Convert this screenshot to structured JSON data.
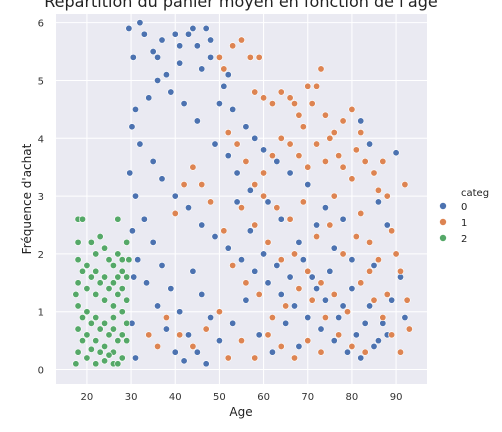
{
  "chart_data": {
    "type": "scatter",
    "title": "Répartition du panier moyen en fonction de l'âge",
    "xlabel": "Age",
    "ylabel": "Fréquence d'achat",
    "xlim": [
      13,
      97
    ],
    "ylim": [
      -0.25,
      6.15
    ],
    "xticks": [
      20,
      30,
      40,
      50,
      60,
      70,
      80,
      90
    ],
    "yticks": [
      0,
      1,
      2,
      3,
      4,
      5,
      6
    ],
    "grid": true,
    "background": "#eaeaf2",
    "legend": {
      "title": "categ",
      "placement": "right",
      "entries": [
        {
          "label": "0",
          "color": "#4c72b0"
        },
        {
          "label": "1",
          "color": "#dd8452"
        },
        {
          "label": "2",
          "color": "#55a868"
        }
      ]
    },
    "series": [
      {
        "name": "0",
        "color": "#4c72b0",
        "points": [
          [
            29.5,
            5.9
          ],
          [
            30.5,
            5.4
          ],
          [
            32,
            6.0
          ],
          [
            33,
            5.8
          ],
          [
            35,
            5.5
          ],
          [
            36,
            5.4
          ],
          [
            38,
            5.1
          ],
          [
            40,
            5.8
          ],
          [
            41,
            5.6
          ],
          [
            43,
            5.8
          ],
          [
            44,
            5.9
          ],
          [
            46,
            5.2
          ],
          [
            47,
            5.9
          ],
          [
            48,
            5.4
          ],
          [
            51,
            4.9
          ],
          [
            53,
            4.5
          ],
          [
            56,
            4.2
          ],
          [
            58,
            4.0
          ],
          [
            60,
            3.8
          ],
          [
            63,
            3.6
          ],
          [
            66,
            3.4
          ],
          [
            70,
            3.2
          ],
          [
            74,
            2.8
          ],
          [
            78,
            2.6
          ],
          [
            82,
            4.3
          ],
          [
            84,
            3.9
          ],
          [
            86,
            2.9
          ],
          [
            88,
            2.5
          ],
          [
            90,
            3.75
          ],
          [
            91,
            1.6
          ],
          [
            92,
            0.9
          ],
          [
            89,
            1.2
          ],
          [
            85,
            1.8
          ],
          [
            80,
            1.9
          ],
          [
            76,
            2.1
          ],
          [
            72,
            2.5
          ],
          [
            68,
            2.2
          ],
          [
            64,
            2.6
          ],
          [
            61,
            2.9
          ],
          [
            57,
            3.1
          ],
          [
            54,
            3.4
          ],
          [
            52,
            3.7
          ],
          [
            49,
            3.9
          ],
          [
            45,
            4.3
          ],
          [
            42,
            4.6
          ],
          [
            39,
            4.8
          ],
          [
            36,
            5.0
          ],
          [
            34,
            4.7
          ],
          [
            31,
            4.5
          ],
          [
            30.2,
            4.2
          ],
          [
            32,
            3.9
          ],
          [
            35,
            3.6
          ],
          [
            37,
            3.3
          ],
          [
            40,
            3.0
          ],
          [
            43,
            2.8
          ],
          [
            46,
            2.5
          ],
          [
            49,
            2.3
          ],
          [
            52,
            2.1
          ],
          [
            55,
            1.9
          ],
          [
            58,
            1.7
          ],
          [
            61,
            1.5
          ],
          [
            64,
            1.3
          ],
          [
            67,
            1.1
          ],
          [
            70,
            0.9
          ],
          [
            73,
            0.7
          ],
          [
            76,
            0.5
          ],
          [
            79,
            0.3
          ],
          [
            82,
            0.2
          ],
          [
            85,
            0.4
          ],
          [
            88,
            0.6
          ],
          [
            31,
            3.0
          ],
          [
            33,
            2.6
          ],
          [
            35,
            2.2
          ],
          [
            37,
            1.8
          ],
          [
            39,
            1.4
          ],
          [
            41,
            1.0
          ],
          [
            43,
            0.6
          ],
          [
            45,
            0.3
          ],
          [
            47,
            0.1
          ],
          [
            31.5,
            1.9
          ],
          [
            33.5,
            1.5
          ],
          [
            36,
            1.1
          ],
          [
            38,
            0.7
          ],
          [
            40,
            0.3
          ],
          [
            42,
            0.15
          ],
          [
            44,
            1.7
          ],
          [
            46,
            1.3
          ],
          [
            48,
            0.9
          ],
          [
            50,
            0.5
          ],
          [
            53,
            0.8
          ],
          [
            56,
            1.2
          ],
          [
            59,
            0.6
          ],
          [
            62,
            0.3
          ],
          [
            65,
            0.8
          ],
          [
            68,
            0.4
          ],
          [
            71,
            1.6
          ],
          [
            74,
            1.2
          ],
          [
            77,
            0.9
          ],
          [
            80,
            1.4
          ],
          [
            83,
            0.8
          ],
          [
            86,
            0.5
          ],
          [
            30.3,
            2.4
          ],
          [
            30.6,
            1.6
          ],
          [
            30.2,
            0.8
          ],
          [
            31,
            0.2
          ],
          [
            29.7,
            3.4
          ],
          [
            50,
            4.6
          ],
          [
            52,
            5.1
          ],
          [
            48,
            5.7
          ],
          [
            45,
            5.6
          ],
          [
            41,
            5.3
          ],
          [
            37,
            5.7
          ],
          [
            54,
            2.9
          ],
          [
            57,
            2.4
          ],
          [
            60,
            2.0
          ],
          [
            63,
            1.8
          ],
          [
            66,
            1.6
          ],
          [
            69,
            1.9
          ],
          [
            72,
            1.4
          ],
          [
            75,
            1.7
          ],
          [
            78,
            1.1
          ],
          [
            81,
            0.6
          ],
          [
            84,
            1.1
          ],
          [
            87,
            0.8
          ]
        ]
      },
      {
        "name": "1",
        "color": "#dd8452",
        "points": [
          [
            50,
            5.4
          ],
          [
            51,
            5.2
          ],
          [
            53,
            5.6
          ],
          [
            55,
            5.7
          ],
          [
            57,
            5.4
          ],
          [
            59,
            5.4
          ],
          [
            58,
            4.8
          ],
          [
            60,
            4.7
          ],
          [
            62,
            4.6
          ],
          [
            64,
            4.8
          ],
          [
            66,
            4.7
          ],
          [
            67,
            4.6
          ],
          [
            68,
            4.4
          ],
          [
            70,
            4.9
          ],
          [
            71,
            4.6
          ],
          [
            72,
            4.9
          ],
          [
            73,
            5.2
          ],
          [
            74,
            4.4
          ],
          [
            76,
            4.1
          ],
          [
            78,
            4.3
          ],
          [
            80,
            4.5
          ],
          [
            81,
            3.8
          ],
          [
            82,
            4.1
          ],
          [
            83,
            3.6
          ],
          [
            85,
            3.4
          ],
          [
            86,
            3.1
          ],
          [
            87,
            3.6
          ],
          [
            88,
            3.0
          ],
          [
            89,
            2.4
          ],
          [
            90,
            2.0
          ],
          [
            91,
            1.7
          ],
          [
            92,
            3.2
          ],
          [
            92.5,
            1.2
          ],
          [
            93,
            0.7
          ],
          [
            91,
            0.3
          ],
          [
            88,
            1.3
          ],
          [
            86,
            1.9
          ],
          [
            84,
            2.2
          ],
          [
            82,
            2.7
          ],
          [
            80,
            3.3
          ],
          [
            78,
            3.5
          ],
          [
            76,
            3.0
          ],
          [
            74,
            3.6
          ],
          [
            72,
            3.9
          ],
          [
            70,
            3.5
          ],
          [
            68,
            3.7
          ],
          [
            66,
            3.9
          ],
          [
            64,
            4.0
          ],
          [
            62,
            3.7
          ],
          [
            60,
            3.4
          ],
          [
            58,
            3.2
          ],
          [
            56,
            3.6
          ],
          [
            54,
            3.9
          ],
          [
            52,
            4.1
          ],
          [
            55,
            2.8
          ],
          [
            58,
            2.5
          ],
          [
            61,
            2.2
          ],
          [
            64,
            1.9
          ],
          [
            67,
            2.0
          ],
          [
            70,
            1.7
          ],
          [
            73,
            1.5
          ],
          [
            76,
            1.3
          ],
          [
            79,
            1.0
          ],
          [
            82,
            1.5
          ],
          [
            85,
            1.2
          ],
          [
            87,
            0.9
          ],
          [
            89,
            0.6
          ],
          [
            83,
            0.3
          ],
          [
            80,
            0.4
          ],
          [
            77,
            0.6
          ],
          [
            74,
            0.9
          ],
          [
            71,
            1.2
          ],
          [
            68,
            1.4
          ],
          [
            65,
            1.1
          ],
          [
            62,
            0.9
          ],
          [
            59,
            1.3
          ],
          [
            56,
            1.5
          ],
          [
            53,
            1.8
          ],
          [
            51,
            2.4
          ],
          [
            48,
            2.9
          ],
          [
            46,
            3.2
          ],
          [
            44,
            3.5
          ],
          [
            42,
            3.2
          ],
          [
            40,
            2.7
          ],
          [
            50,
            1.0
          ],
          [
            47,
            0.7
          ],
          [
            44,
            0.4
          ],
          [
            41,
            0.6
          ],
          [
            38,
            0.9
          ],
          [
            36,
            0.4
          ],
          [
            34,
            0.6
          ],
          [
            52,
            0.2
          ],
          [
            55,
            0.5
          ],
          [
            58,
            0.2
          ],
          [
            61,
            0.6
          ],
          [
            64,
            0.4
          ],
          [
            67,
            0.2
          ],
          [
            70,
            0.5
          ],
          [
            73,
            0.3
          ],
          [
            60,
            3.0
          ],
          [
            63,
            2.8
          ],
          [
            66,
            2.6
          ],
          [
            69,
            2.9
          ],
          [
            72,
            2.3
          ],
          [
            75,
            2.5
          ],
          [
            78,
            2.0
          ],
          [
            81,
            2.3
          ],
          [
            84,
            1.7
          ],
          [
            77,
            3.7
          ],
          [
            75,
            4.0
          ],
          [
            69,
            4.2
          ]
        ]
      },
      {
        "name": "2",
        "color": "#55a868",
        "points": [
          [
            18,
            2.6
          ],
          [
            19,
            2.6
          ],
          [
            18,
            2.2
          ],
          [
            21,
            2.2
          ],
          [
            22,
            2.0
          ],
          [
            23,
            2.3
          ],
          [
            24,
            2.1
          ],
          [
            25,
            1.9
          ],
          [
            26,
            1.8
          ],
          [
            27,
            2.0
          ],
          [
            28,
            1.9
          ],
          [
            29,
            2.2
          ],
          [
            27,
            2.6
          ],
          [
            29.5,
            1.9
          ],
          [
            18,
            1.9
          ],
          [
            20,
            1.8
          ],
          [
            22,
            1.7
          ],
          [
            24,
            1.6
          ],
          [
            26,
            1.5
          ],
          [
            28,
            1.4
          ],
          [
            18,
            1.5
          ],
          [
            20,
            1.4
          ],
          [
            22,
            1.3
          ],
          [
            24,
            1.2
          ],
          [
            26,
            1.1
          ],
          [
            28,
            1.0
          ],
          [
            18,
            1.1
          ],
          [
            20,
            1.0
          ],
          [
            22,
            0.9
          ],
          [
            24,
            0.8
          ],
          [
            26,
            0.7
          ],
          [
            28,
            0.6
          ],
          [
            18,
            0.7
          ],
          [
            20,
            0.6
          ],
          [
            22,
            0.5
          ],
          [
            24,
            0.4
          ],
          [
            26,
            0.3
          ],
          [
            28,
            0.2
          ],
          [
            18,
            0.3
          ],
          [
            20,
            0.2
          ],
          [
            22,
            0.1
          ],
          [
            24,
            0.15
          ],
          [
            26,
            0.1
          ],
          [
            29,
            0.5
          ],
          [
            19,
            1.7
          ],
          [
            21,
            1.6
          ],
          [
            23,
            1.5
          ],
          [
            25,
            1.4
          ],
          [
            27,
            1.3
          ],
          [
            29,
            1.2
          ],
          [
            19,
            0.9
          ],
          [
            21,
            0.8
          ],
          [
            23,
            0.7
          ],
          [
            25,
            0.6
          ],
          [
            27,
            0.5
          ],
          [
            19,
            0.5
          ],
          [
            21,
            0.35
          ],
          [
            23,
            0.3
          ],
          [
            25,
            0.25
          ],
          [
            27,
            0.1
          ],
          [
            29,
            0.8
          ],
          [
            29,
            1.6
          ],
          [
            28,
            1.7
          ],
          [
            27,
            1.6
          ],
          [
            26,
            0.9
          ],
          [
            17.5,
            1.3
          ],
          [
            17.5,
            0.1
          ]
        ]
      }
    ]
  }
}
